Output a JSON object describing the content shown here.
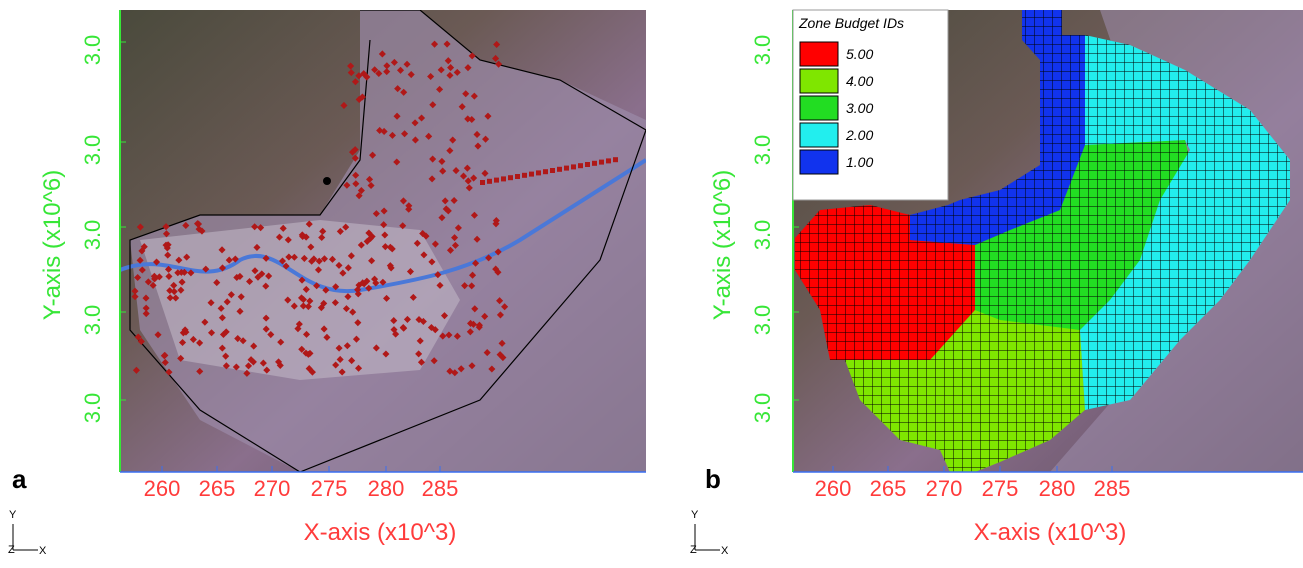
{
  "panels": [
    {
      "label": "a",
      "x_axis_label": "X-axis (x10^3)",
      "y_axis_label": "Y-axis (x10^6)",
      "xticks": [
        "260",
        "265",
        "270",
        "275",
        "280",
        "285"
      ],
      "yticks": [
        "3.0",
        "3.0",
        "3.0",
        "3.0",
        "3.0"
      ],
      "triad": {
        "y": "Y",
        "z": "Z",
        "x": "X"
      }
    },
    {
      "label": "b",
      "x_axis_label": "X-axis (x10^3)",
      "y_axis_label": "Y-axis (x10^6)",
      "xticks": [
        "260",
        "265",
        "270",
        "275",
        "280",
        "285"
      ],
      "yticks": [
        "3.0",
        "3.0",
        "3.0",
        "3.0",
        "3.0"
      ],
      "triad": {
        "y": "Y",
        "z": "Z",
        "x": "X"
      },
      "legend": {
        "title": "Zone Budget IDs",
        "entries": [
          {
            "label": "5.00",
            "color": "#ff0000"
          },
          {
            "label": "4.00",
            "color": "#7fe600"
          },
          {
            "label": "3.00",
            "color": "#22dd22"
          },
          {
            "label": "2.00",
            "color": "#22eeee"
          },
          {
            "label": "1.00",
            "color": "#1133ee"
          }
        ]
      }
    }
  ]
}
